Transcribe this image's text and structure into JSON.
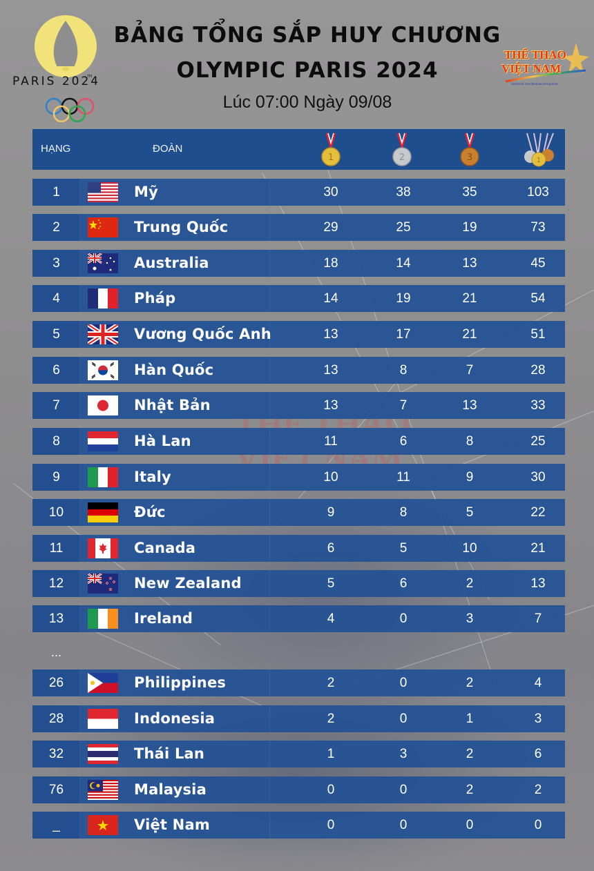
{
  "header": {
    "title_line1": "BẢNG TỔNG SẮP HUY CHƯƠNG",
    "title_line2": "OLYMPIC PARIS 2024",
    "subtitle": "Lúc 07:00 Ngày 09/08",
    "paris_logo_text": "PARIS 2024",
    "paris_logo_tm": "TM",
    "brand_line1": "THỂ THAO",
    "brand_line2": "VIỆT NAM",
    "brand_url": "facebook.com/thethaovietcapnhat"
  },
  "colors": {
    "header_bg": "#1f4e8e",
    "row_bg": "#2452a0",
    "page_bg": "#8f8e8f",
    "gold": "#e4bf3e",
    "silver": "#c8c9cc",
    "bronze": "#c9812f"
  },
  "table": {
    "columns": {
      "rank": "HẠNG",
      "team": "ĐOÀN",
      "gold_icon": "gold-medal-icon",
      "silver_icon": "silver-medal-icon",
      "bronze_icon": "bronze-medal-icon",
      "total_icon": "total-medals-icon"
    },
    "rows": [
      {
        "rank": "1",
        "flag": "usa",
        "team": "Mỹ",
        "gold": "30",
        "silver": "38",
        "bronze": "35",
        "total": "103"
      },
      {
        "rank": "2",
        "flag": "china",
        "team": "Trung Quốc",
        "gold": "29",
        "silver": "25",
        "bronze": "19",
        "total": "73"
      },
      {
        "rank": "3",
        "flag": "australia",
        "team": "Australia",
        "gold": "18",
        "silver": "14",
        "bronze": "13",
        "total": "45"
      },
      {
        "rank": "4",
        "flag": "france",
        "team": "Pháp",
        "gold": "14",
        "silver": "19",
        "bronze": "21",
        "total": "54"
      },
      {
        "rank": "5",
        "flag": "uk",
        "team": "Vương Quốc Anh",
        "gold": "13",
        "silver": "17",
        "bronze": "21",
        "total": "51"
      },
      {
        "rank": "6",
        "flag": "korea",
        "team": "Hàn Quốc",
        "gold": "13",
        "silver": "8",
        "bronze": "7",
        "total": "28"
      },
      {
        "rank": "7",
        "flag": "japan",
        "team": "Nhật Bản",
        "gold": "13",
        "silver": "7",
        "bronze": "13",
        "total": "33"
      },
      {
        "rank": "8",
        "flag": "netherlands",
        "team": "Hà Lan",
        "gold": "11",
        "silver": "6",
        "bronze": "8",
        "total": "25"
      },
      {
        "rank": "9",
        "flag": "italy",
        "team": "Italy",
        "gold": "10",
        "silver": "11",
        "bronze": "9",
        "total": "30"
      },
      {
        "rank": "10",
        "flag": "germany",
        "team": "Đức",
        "gold": "9",
        "silver": "8",
        "bronze": "5",
        "total": "22"
      },
      {
        "rank": "11",
        "flag": "canada",
        "team": "Canada",
        "gold": "6",
        "silver": "5",
        "bronze": "10",
        "total": "21"
      },
      {
        "rank": "12",
        "flag": "new-zealand",
        "team": "New Zealand",
        "gold": "5",
        "silver": "6",
        "bronze": "2",
        "total": "13"
      },
      {
        "rank": "13",
        "flag": "ireland",
        "team": "Ireland",
        "gold": "4",
        "silver": "0",
        "bronze": "3",
        "total": "7"
      },
      {
        "rank": "26",
        "flag": "philippines",
        "team": "Philippines",
        "gold": "2",
        "silver": "0",
        "bronze": "2",
        "total": "4"
      },
      {
        "rank": "28",
        "flag": "indonesia",
        "team": "Indonesia",
        "gold": "2",
        "silver": "0",
        "bronze": "1",
        "total": "3"
      },
      {
        "rank": "32",
        "flag": "thailand",
        "team": "Thái Lan",
        "gold": "1",
        "silver": "3",
        "bronze": "2",
        "total": "6"
      },
      {
        "rank": "76",
        "flag": "malaysia",
        "team": "Malaysia",
        "gold": "0",
        "silver": "0",
        "bronze": "2",
        "total": "2"
      },
      {
        "rank": "_",
        "flag": "vietnam",
        "team": "Việt Nam",
        "gold": "0",
        "silver": "0",
        "bronze": "0",
        "total": "0"
      }
    ],
    "gap_marker": "..."
  },
  "watermark": {
    "line1": "THỂ THAO",
    "line2": "VIỆT NAM"
  }
}
